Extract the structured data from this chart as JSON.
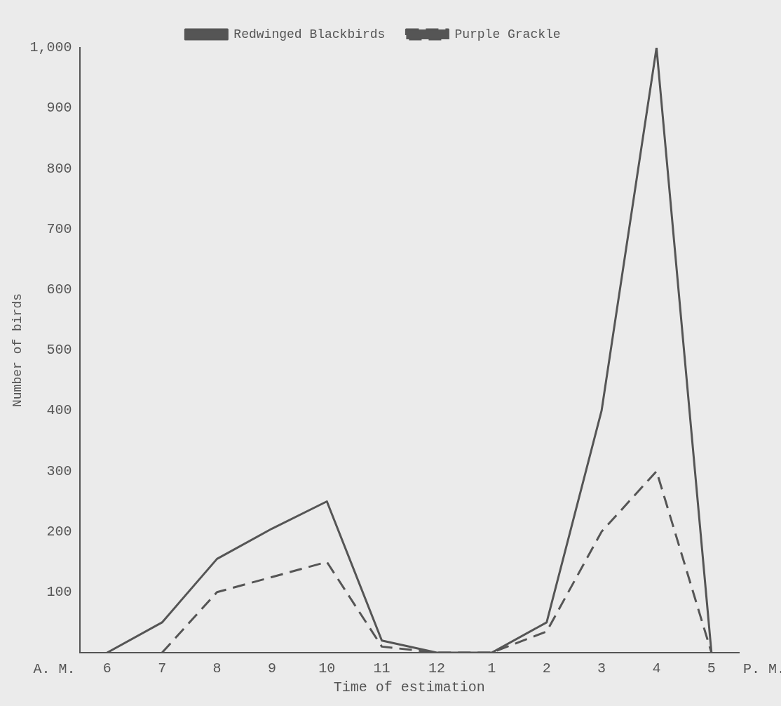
{
  "chart_data": {
    "type": "line",
    "xlabel": "Time of estimation",
    "ylabel": "Number of birds",
    "categories": [
      "6",
      "7",
      "8",
      "9",
      "10",
      "11",
      "12",
      "1",
      "2",
      "3",
      "4",
      "5"
    ],
    "ylim": [
      0,
      1000
    ],
    "yticks": [
      100,
      200,
      300,
      400,
      500,
      600,
      700,
      800,
      900,
      {
        "value": 1000,
        "label": "1,000"
      }
    ],
    "series": [
      {
        "name": "Redwinged Blackbirds",
        "color": "#555555",
        "line_style": "solid",
        "values": [
          0,
          50,
          155,
          205,
          250,
          20,
          0,
          0,
          50,
          400,
          1000,
          0
        ]
      },
      {
        "name": "Purple Grackle",
        "color": "#555555",
        "line_style": "dashed",
        "values": [
          null,
          0,
          100,
          125,
          150,
          10,
          0,
          0,
          35,
          200,
          300,
          0
        ]
      }
    ],
    "annotations": [
      "A. M.",
      "P. M."
    ],
    "legend": "top",
    "grid": false,
    "marker": "none"
  }
}
